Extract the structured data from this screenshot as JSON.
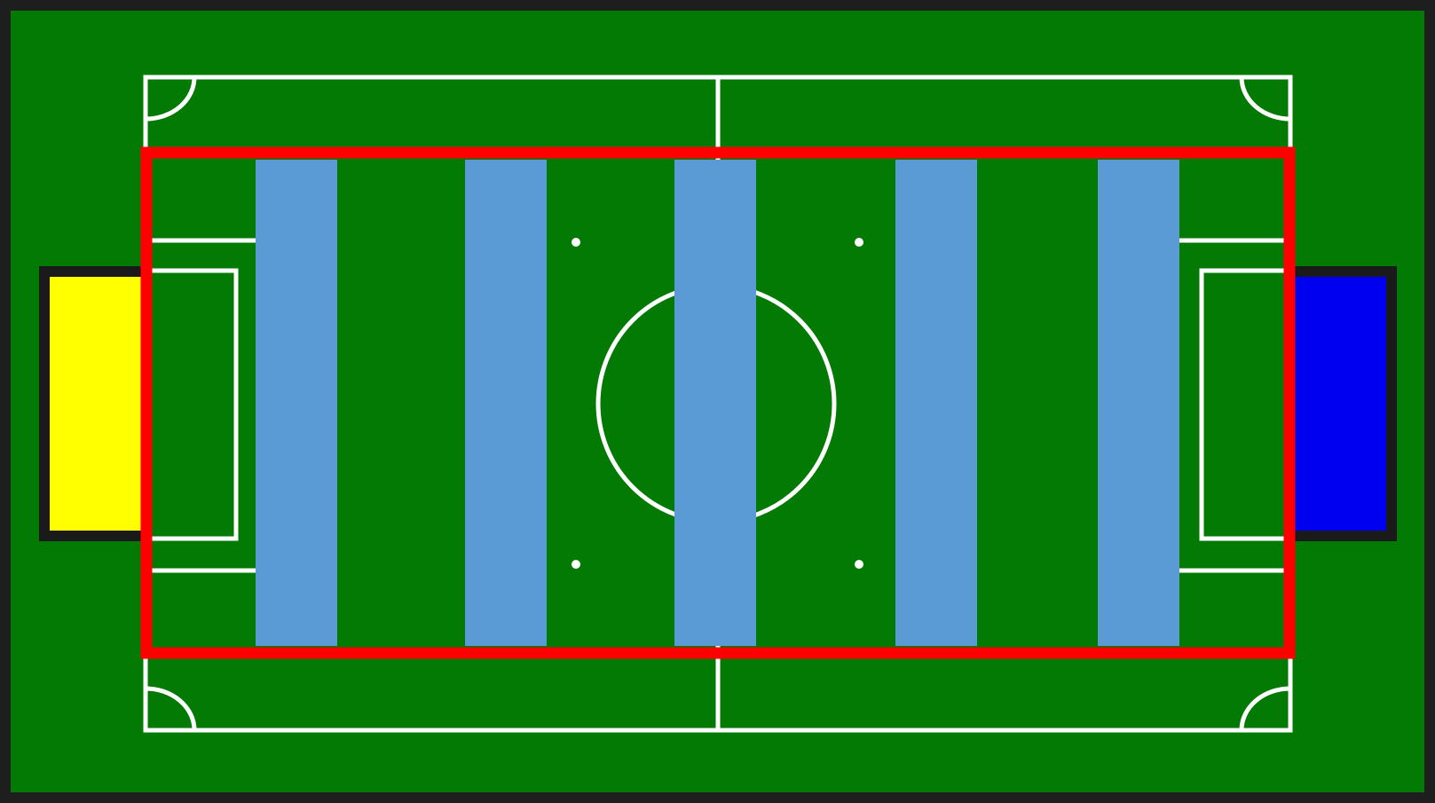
{
  "colors": {
    "frame": "#1e1e1e",
    "grass": "#037a03",
    "line": "#ffffff",
    "goal_frame": "#1a1a1a",
    "left_goal": "#ffff00",
    "right_goal": "#0000f0",
    "zone_outline": "#ff0000",
    "lanes": "#5b9bd5"
  },
  "field": {
    "lane_count": 5,
    "goals": [
      "yellow",
      "blue"
    ]
  }
}
